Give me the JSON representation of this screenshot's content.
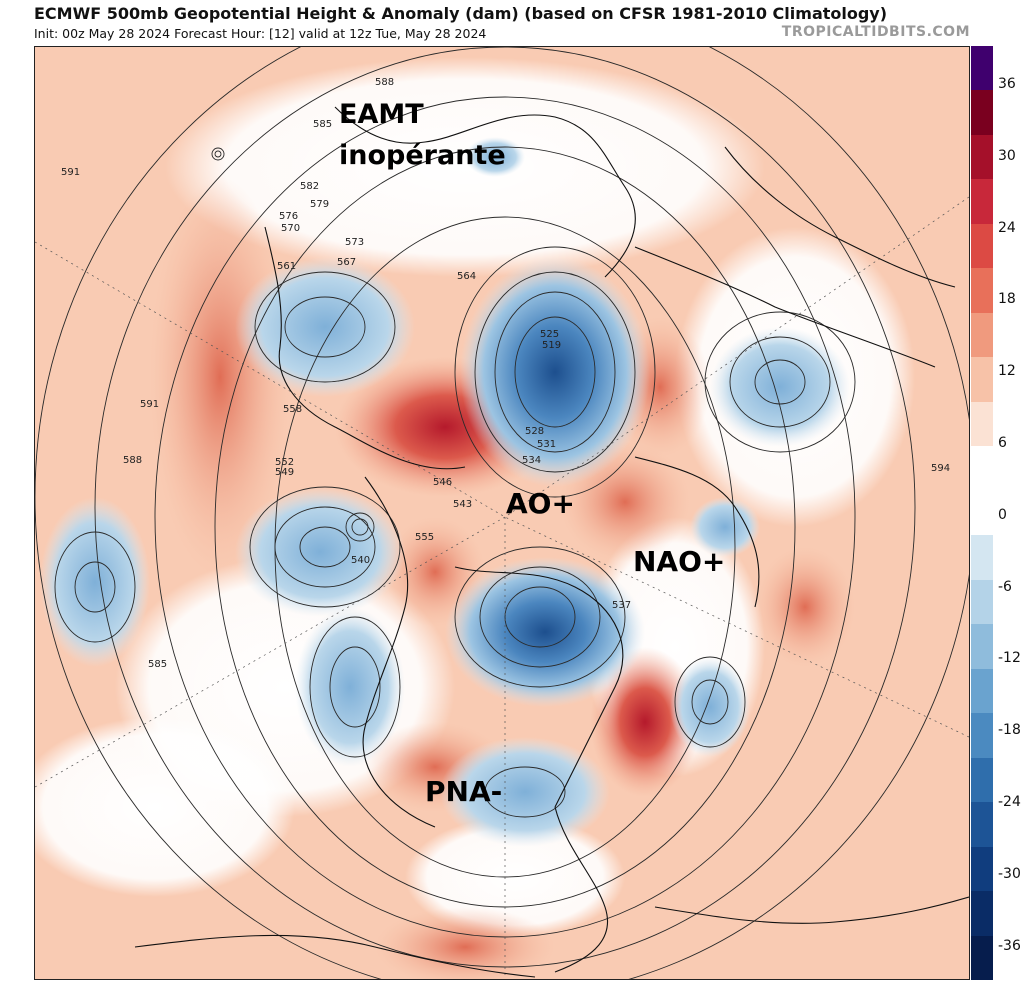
{
  "header": {
    "title": "ECMWF 500mb Geopotential Height & Anomaly (dam) (based on CFSR 1981-2010 Climatology)",
    "subtitle": "Init: 00z May 28 2024   Forecast Hour: [12]   valid at 12z Tue, May 28 2024",
    "brand": "TROPICALTIDBITS.COM"
  },
  "annotations": {
    "eamt_line1": "EAMT",
    "eamt_line2": "inopérante",
    "ao": "AO+",
    "nao": "NAO+",
    "pna": "PNA-"
  },
  "contour_labels": [
    "588",
    "585",
    "591",
    "582",
    "579",
    "576",
    "573",
    "570",
    "567",
    "564",
    "561",
    "558",
    "555",
    "552",
    "549",
    "546",
    "543",
    "540",
    "537",
    "534",
    "531",
    "528",
    "525",
    "519",
    "585",
    "591",
    "588",
    "594"
  ],
  "colorbar": {
    "ticks": [
      "36",
      "30",
      "24",
      "18",
      "12",
      "6",
      "0",
      "-6",
      "-12",
      "-18",
      "-24",
      "-30",
      "-36"
    ],
    "colors": [
      "#3f006e",
      "#7a001f",
      "#a5102a",
      "#c8283a",
      "#dc4a44",
      "#e8705a",
      "#f09a7e",
      "#f7c2a8",
      "#fbe2d4",
      "#ffffff",
      "#ffffff",
      "#d4e6f1",
      "#b4d3e8",
      "#8fbcdc",
      "#6aa3cf",
      "#4b8ac0",
      "#2f6eac",
      "#1d5496",
      "#103d7e",
      "#0a2c66",
      "#061d4d"
    ]
  }
}
